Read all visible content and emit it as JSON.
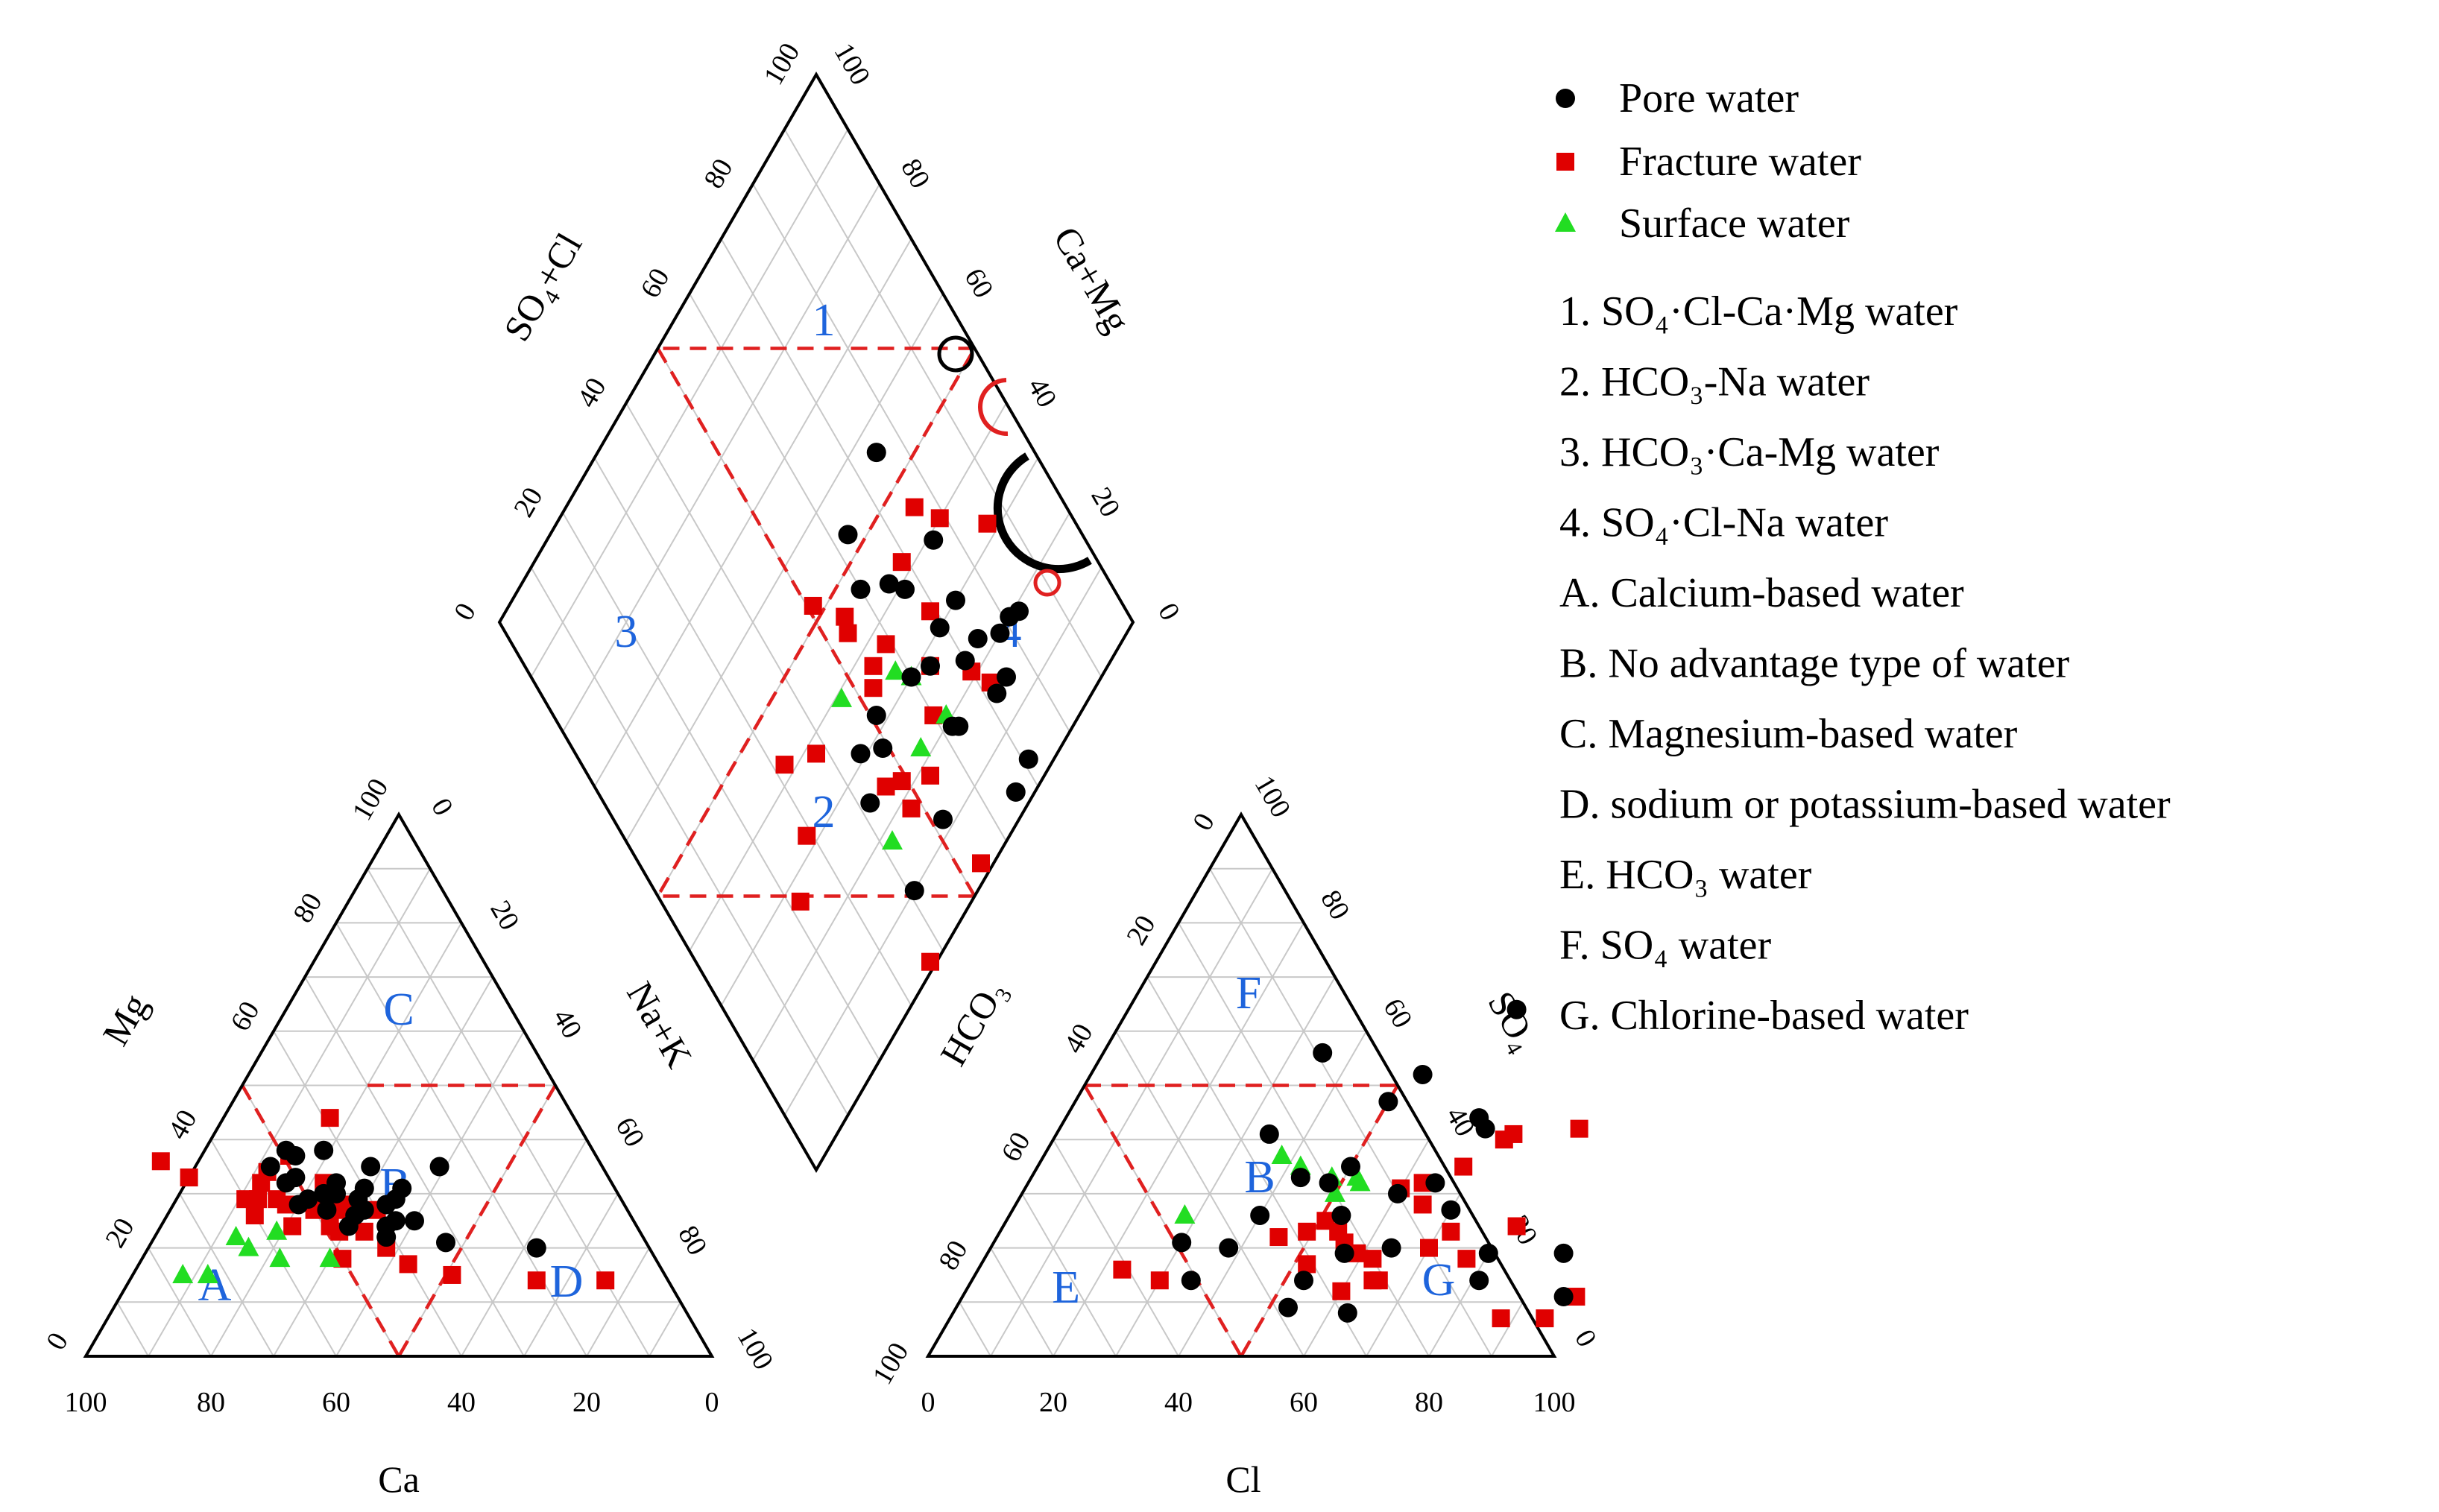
{
  "chart_data": {
    "type": "scatter",
    "subtype": "piper-diagram",
    "series": [
      {
        "name": "Pore water",
        "marker": "circle",
        "color": "#000000",
        "cation_points": [
          [
            52,
            32
          ],
          [
            50,
            33
          ],
          [
            52,
            28
          ],
          [
            47,
            30
          ],
          [
            48,
            27
          ],
          [
            45,
            30
          ],
          [
            44,
            32
          ],
          [
            42,
            29
          ],
          [
            40,
            31
          ],
          [
            38,
            28
          ],
          [
            36,
            29
          ],
          [
            34,
            31
          ],
          [
            44,
            26
          ],
          [
            42,
            27
          ],
          [
            50,
            29
          ],
          [
            46,
            24
          ],
          [
            40,
            24
          ],
          [
            38,
            25
          ],
          [
            35,
            25
          ],
          [
            41,
            22
          ],
          [
            32,
            21
          ],
          [
            26,
            35
          ],
          [
            18,
            20
          ],
          [
            37,
            35
          ],
          [
            43,
            38
          ],
          [
            48,
            37
          ],
          [
            53,
            35
          ],
          [
            49,
            38
          ]
        ],
        "anion_points": [
          [
            62,
            64
          ],
          [
            35,
            56
          ],
          [
            53,
            52
          ],
          [
            66,
            44
          ],
          [
            50,
            47
          ],
          [
            68,
            42
          ],
          [
            34,
            41
          ],
          [
            50,
            35
          ],
          [
            43,
            33
          ],
          [
            48,
            32
          ],
          [
            65,
            32
          ],
          [
            60,
            30
          ],
          [
            70,
            27
          ],
          [
            53,
            26
          ],
          [
            40,
            26
          ],
          [
            30,
            21
          ],
          [
            64,
            20
          ],
          [
            38,
            20
          ],
          [
            57,
            19
          ],
          [
            80,
            19
          ],
          [
            35,
            14
          ],
          [
            53,
            14
          ],
          [
            92,
            19
          ],
          [
            81,
            14
          ],
          [
            96,
            11
          ],
          [
            53,
            9
          ],
          [
            63,
            8
          ]
        ],
        "diamond_points": [
          [
            28,
            64
          ],
          [
            20,
            81
          ],
          [
            19,
            83
          ],
          [
            15,
            75
          ],
          [
            30,
            74
          ],
          [
            23,
            74
          ],
          [
            20,
            78
          ],
          [
            15,
            72
          ],
          [
            39,
            76
          ],
          [
            30,
            69
          ],
          [
            23,
            70
          ],
          [
            39,
            67
          ],
          [
            18,
            63
          ],
          [
            19,
            62
          ],
          [
            30,
            60
          ],
          [
            32,
            51
          ],
          [
            28,
            49
          ],
          [
            31,
            45
          ],
          [
            25,
            42
          ],
          [
            12,
            52
          ],
          [
            10,
            41
          ],
          [
            3,
            66
          ],
          [
            42,
            65
          ],
          [
            46,
            60
          ],
          [
            53,
            63
          ],
          [
            56,
            75
          ],
          [
            4,
            71
          ]
        ]
      },
      {
        "name": "Fracture water",
        "marker": "square",
        "color": "#e00000",
        "cation_points": [
          [
            70,
            36
          ],
          [
            54,
            34
          ],
          [
            49,
            37
          ],
          [
            56,
            32
          ],
          [
            46,
            32
          ],
          [
            54,
            28
          ],
          [
            50,
            27
          ],
          [
            58,
            29
          ],
          [
            46,
            27
          ],
          [
            45,
            28
          ],
          [
            67,
            33
          ],
          [
            55,
            29
          ],
          [
            55,
            24
          ],
          [
            48,
            23
          ],
          [
            60,
            26
          ],
          [
            40,
            27
          ],
          [
            39,
            44
          ],
          [
            34,
            15
          ],
          [
            40,
            17
          ],
          [
            50,
            18
          ],
          [
            10,
            14
          ],
          [
            21,
            14
          ],
          [
            42,
            20
          ],
          [
            44,
            23
          ],
          [
            49,
            24
          ],
          [
            60,
            29
          ]
        ],
        "anion_points": [
          [
            83,
            42
          ],
          [
            73,
            41
          ],
          [
            72,
            40
          ],
          [
            68,
            35
          ],
          [
            60,
            31
          ],
          [
            63,
            32
          ],
          [
            65,
            28
          ],
          [
            72,
            23
          ],
          [
            82,
            24
          ],
          [
            77,
            18
          ],
          [
            62,
            18
          ],
          [
            64,
            14
          ],
          [
            65,
            14
          ],
          [
            60,
            12
          ],
          [
            51,
            25
          ],
          [
            56,
            21
          ],
          [
            59,
            19
          ],
          [
            54,
            23
          ],
          [
            88,
            7
          ],
          [
            98,
            11
          ],
          [
            95,
            7
          ],
          [
            23,
            16
          ],
          [
            30,
            14
          ],
          [
            52,
            17
          ],
          [
            45,
            22
          ],
          [
            70,
            20
          ],
          [
            49,
            23
          ]
        ],
        "diamond_points": [
          [
            32,
            86
          ],
          [
            40,
            79
          ],
          [
            45,
            76
          ],
          [
            42,
            69
          ],
          [
            33,
            69
          ],
          [
            21,
            70
          ],
          [
            17,
            72
          ],
          [
            37,
            59
          ],
          [
            28,
            64
          ],
          [
            23,
            60
          ],
          [
            37,
            55
          ],
          [
            44,
            54
          ],
          [
            35,
            53
          ],
          [
            24,
            46
          ],
          [
            18,
            54
          ],
          [
            22,
            49
          ],
          [
            18,
            48
          ],
          [
            46,
            55
          ],
          [
            52,
            51
          ],
          [
            2,
            54
          ],
          [
            1,
            37
          ],
          [
            38,
            38
          ],
          [
            32,
            29
          ],
          [
            27,
            22
          ],
          [
            42,
            32
          ]
        ]
      },
      {
        "name": "Surface water",
        "marker": "triangle",
        "color": "#22dd22",
        "cation_points": [
          [
            65,
            22
          ],
          [
            64,
            20
          ],
          [
            52,
            18
          ],
          [
            77,
            15
          ],
          [
            73,
            15
          ],
          [
            60,
            18
          ],
          [
            58,
            23
          ]
        ],
        "anion_points": [
          [
            38,
            37
          ],
          [
            42,
            35
          ],
          [
            52,
            33
          ],
          [
            53,
            32
          ],
          [
            28,
            26
          ],
          [
            50,
            30
          ],
          [
            48,
            33
          ]
        ],
        "diamond_points": [
          [
            22,
            55
          ],
          [
            21,
            62
          ],
          [
            30,
            60
          ],
          [
            33,
            58
          ],
          [
            39,
            47
          ],
          [
            18,
            42
          ]
        ]
      }
    ],
    "ternary_cation": {
      "vertices": [
        "Ca",
        "Mg",
        "Na+K"
      ],
      "axis_titles": [
        "Ca",
        "Mg",
        "Na+K"
      ],
      "ticks": [
        0,
        20,
        40,
        60,
        80,
        100
      ]
    },
    "ternary_anion": {
      "vertices": [
        "HCO3",
        "SO4",
        "Cl"
      ],
      "axis_titles": [
        "Cl",
        "HCO3",
        "SO4"
      ],
      "ticks": [
        0,
        20,
        40,
        60,
        80,
        100
      ]
    },
    "diamond": {
      "axis_titles": [
        "SO4+Cl",
        "Ca+Mg"
      ],
      "ticks": [
        0,
        20,
        40,
        60,
        80,
        100
      ]
    },
    "diamond_zone_labels": [
      "1",
      "2",
      "3",
      "4"
    ],
    "cation_zone_labels": [
      "A",
      "B",
      "C",
      "D"
    ],
    "anion_zone_labels": [
      "E",
      "F",
      "G",
      "B"
    ],
    "zone_legend": [
      "1. SO₄·Cl-Ca·Mg water",
      "2. HCO₃-Na water",
      "3. HCO₃·Ca-Mg water",
      "4. SO₄·Cl-Na water",
      "A. Calcium-based water",
      "B. No advantage type of water",
      "C. Magnesium-based water",
      "D. sodium or potassium-based water",
      "E. HCO₃ water",
      "F. SO₄ water",
      "G. Chlorine-based water"
    ]
  }
}
